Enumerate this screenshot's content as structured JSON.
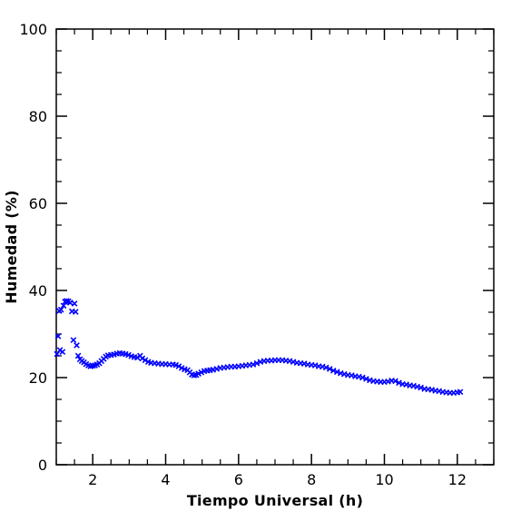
{
  "chart_data": {
    "type": "scatter",
    "xlabel": "Tiempo Universal (h)",
    "ylabel": "Humedad (%)",
    "xlim": [
      1.0,
      13.0
    ],
    "ylim": [
      0,
      100
    ],
    "xticks": [
      2,
      4,
      6,
      8,
      10,
      12
    ],
    "yticks": [
      0,
      20,
      40,
      60,
      80,
      100
    ],
    "grid": false,
    "marker": "x",
    "marker_color": "#0000ff",
    "series": [
      {
        "values_xy": [
          [
            1.02,
            25.4
          ],
          [
            1.05,
            29.5
          ],
          [
            1.08,
            35.3
          ],
          [
            1.1,
            26.3
          ],
          [
            1.13,
            35.6
          ],
          [
            1.17,
            25.9
          ],
          [
            1.2,
            36.5
          ],
          [
            1.24,
            37.4
          ],
          [
            1.28,
            37.6
          ],
          [
            1.33,
            37.5
          ],
          [
            1.38,
            37.2
          ],
          [
            1.43,
            35.2
          ],
          [
            1.47,
            28.6
          ],
          [
            1.5,
            37.0
          ],
          [
            1.53,
            35.1
          ],
          [
            1.56,
            27.4
          ],
          [
            1.6,
            25.0
          ],
          [
            1.65,
            24.2
          ],
          [
            1.7,
            23.8
          ],
          [
            1.76,
            23.5
          ],
          [
            1.82,
            23.1
          ],
          [
            1.88,
            22.8
          ],
          [
            1.94,
            22.6
          ],
          [
            2.0,
            22.7
          ],
          [
            2.06,
            22.8
          ],
          [
            2.12,
            23.0
          ],
          [
            2.18,
            23.3
          ],
          [
            2.24,
            23.8
          ],
          [
            2.3,
            24.3
          ],
          [
            2.36,
            24.8
          ],
          [
            2.42,
            25.1
          ],
          [
            2.5,
            25.2
          ],
          [
            2.58,
            25.3
          ],
          [
            2.66,
            25.5
          ],
          [
            2.74,
            25.6
          ],
          [
            2.82,
            25.5
          ],
          [
            2.9,
            25.4
          ],
          [
            2.98,
            25.2
          ],
          [
            3.06,
            24.9
          ],
          [
            3.14,
            24.7
          ],
          [
            3.22,
            24.6
          ],
          [
            3.3,
            25.0
          ],
          [
            3.36,
            24.4
          ],
          [
            3.44,
            24.0
          ],
          [
            3.52,
            23.6
          ],
          [
            3.6,
            23.4
          ],
          [
            3.7,
            23.3
          ],
          [
            3.8,
            23.2
          ],
          [
            3.9,
            23.1
          ],
          [
            4.0,
            23.1
          ],
          [
            4.1,
            23.0
          ],
          [
            4.2,
            23.0
          ],
          [
            4.28,
            22.9
          ],
          [
            4.36,
            22.6
          ],
          [
            4.44,
            22.2
          ],
          [
            4.52,
            21.9
          ],
          [
            4.6,
            21.7
          ],
          [
            4.66,
            21.2
          ],
          [
            4.72,
            20.7
          ],
          [
            4.78,
            20.5
          ],
          [
            4.84,
            20.6
          ],
          [
            4.9,
            20.9
          ],
          [
            4.98,
            21.2
          ],
          [
            5.06,
            21.5
          ],
          [
            5.14,
            21.6
          ],
          [
            5.22,
            21.7
          ],
          [
            5.3,
            21.8
          ],
          [
            5.4,
            22.0
          ],
          [
            5.5,
            22.2
          ],
          [
            5.6,
            22.3
          ],
          [
            5.7,
            22.4
          ],
          [
            5.8,
            22.5
          ],
          [
            5.9,
            22.5
          ],
          [
            6.0,
            22.6
          ],
          [
            6.1,
            22.7
          ],
          [
            6.2,
            22.8
          ],
          [
            6.3,
            22.9
          ],
          [
            6.4,
            23.0
          ],
          [
            6.5,
            23.3
          ],
          [
            6.6,
            23.6
          ],
          [
            6.7,
            23.8
          ],
          [
            6.8,
            23.9
          ],
          [
            6.9,
            23.9
          ],
          [
            7.0,
            24.0
          ],
          [
            7.1,
            24.0
          ],
          [
            7.2,
            24.0
          ],
          [
            7.3,
            23.9
          ],
          [
            7.4,
            23.8
          ],
          [
            7.5,
            23.6
          ],
          [
            7.6,
            23.4
          ],
          [
            7.7,
            23.3
          ],
          [
            7.8,
            23.2
          ],
          [
            7.9,
            23.0
          ],
          [
            8.0,
            22.9
          ],
          [
            8.1,
            22.8
          ],
          [
            8.2,
            22.6
          ],
          [
            8.3,
            22.5
          ],
          [
            8.4,
            22.3
          ],
          [
            8.5,
            22.0
          ],
          [
            8.6,
            21.6
          ],
          [
            8.7,
            21.3
          ],
          [
            8.8,
            21.0
          ],
          [
            8.9,
            20.8
          ],
          [
            9.0,
            20.6
          ],
          [
            9.1,
            20.5
          ],
          [
            9.2,
            20.3
          ],
          [
            9.3,
            20.2
          ],
          [
            9.4,
            20.0
          ],
          [
            9.5,
            19.7
          ],
          [
            9.6,
            19.4
          ],
          [
            9.7,
            19.2
          ],
          [
            9.8,
            19.1
          ],
          [
            9.9,
            19.0
          ],
          [
            10.0,
            19.0
          ],
          [
            10.1,
            19.1
          ],
          [
            10.2,
            19.3
          ],
          [
            10.3,
            19.2
          ],
          [
            10.4,
            18.8
          ],
          [
            10.5,
            18.5
          ],
          [
            10.6,
            18.4
          ],
          [
            10.7,
            18.2
          ],
          [
            10.8,
            18.1
          ],
          [
            10.9,
            17.9
          ],
          [
            11.0,
            17.7
          ],
          [
            11.1,
            17.4
          ],
          [
            11.2,
            17.3
          ],
          [
            11.3,
            17.2
          ],
          [
            11.4,
            17.0
          ],
          [
            11.5,
            16.9
          ],
          [
            11.6,
            16.7
          ],
          [
            11.7,
            16.6
          ],
          [
            11.8,
            16.5
          ],
          [
            11.9,
            16.5
          ],
          [
            12.0,
            16.6
          ],
          [
            12.08,
            16.7
          ]
        ]
      }
    ]
  }
}
